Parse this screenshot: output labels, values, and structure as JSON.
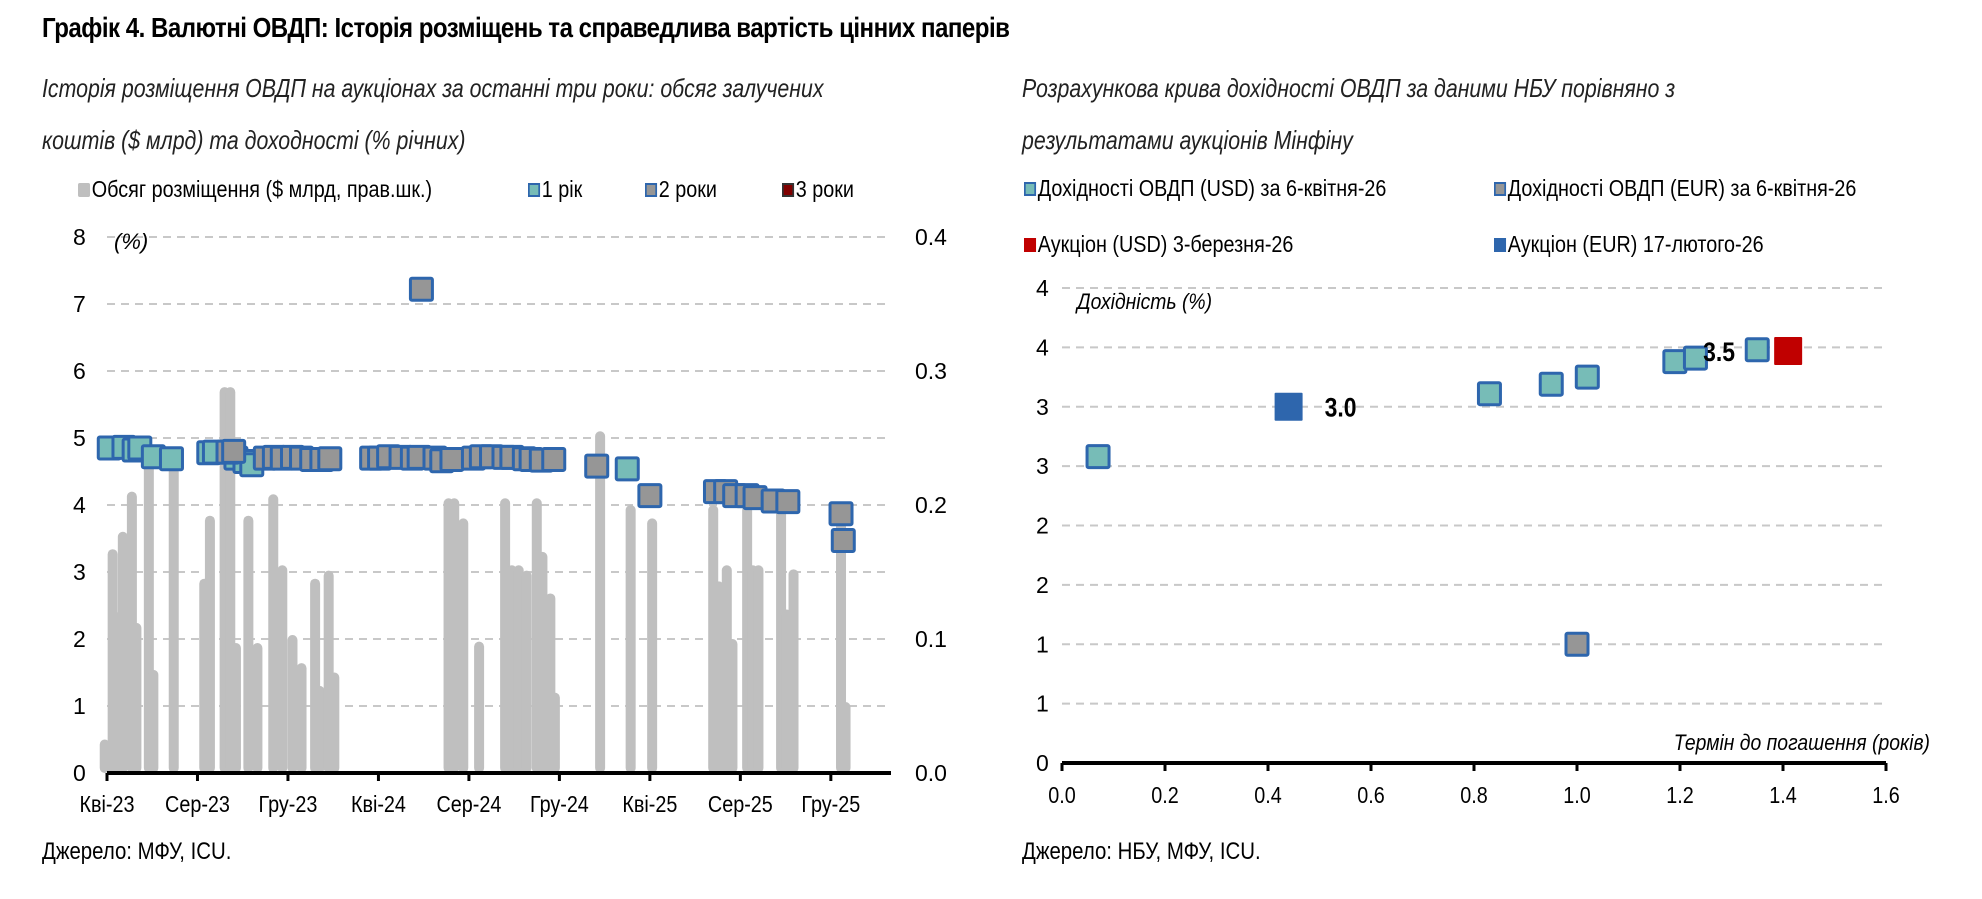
{
  "title": "Графік 4. Валютні ОВДП: Історія розміщень та справедлива вартість цінних паперів",
  "colors": {
    "bar": "#bfbfbf",
    "y1_fill": "#77bcb7",
    "y2_fill": "#969696",
    "y3_fill": "#7f0000",
    "marker_border": "#2e66ad",
    "auction_usd": "#c00000",
    "auction_eur": "#2e66ad",
    "grid": "#c8c8c8"
  },
  "chart_data": [
    {
      "type": "bar",
      "subtitle_line1": "Історія розміщення ОВДП на аукціонах за останні три роки: обсяг залучених",
      "subtitle_line2": "коштів ($ млрд) та доходності (% річних)",
      "legend": [
        {
          "label": "Обсяг розміщення ($ млрд, прав.шк.)",
          "kind": "bar"
        },
        {
          "label": "1 рік",
          "kind": "y1"
        },
        {
          "label": "2 роки",
          "kind": "y2"
        },
        {
          "label": "3 роки",
          "kind": "y3"
        }
      ],
      "ylabel": "(%)",
      "ylim": [
        0,
        8
      ],
      "yticks": [
        "0",
        "1",
        "2",
        "3",
        "4",
        "5",
        "6",
        "7",
        "8"
      ],
      "y2lim": [
        0,
        0.4
      ],
      "y2ticks": [
        "0.0",
        "0.1",
        "0.2",
        "0.3",
        "0.4"
      ],
      "xticks": [
        "Кві-23",
        "Сер-23",
        "Гру-23",
        "Кві-24",
        "Сер-24",
        "Гру-24",
        "Кві-25",
        "Сер-25",
        "Гру-25"
      ],
      "x_unit": "months since Кві-23",
      "bars": [
        {
          "x": -0.1,
          "v": 0.025
        },
        {
          "x": 0.25,
          "v": 0.167
        },
        {
          "x": 0.45,
          "v": 0.12
        },
        {
          "x": 0.7,
          "v": 0.18
        },
        {
          "x": 1.1,
          "v": 0.21
        },
        {
          "x": 1.3,
          "v": 0.112
        },
        {
          "x": 1.85,
          "v": 0.24
        },
        {
          "x": 2.05,
          "v": 0.077
        },
        {
          "x": 2.95,
          "v": 0.24
        },
        {
          "x": 4.3,
          "v": 0.145
        },
        {
          "x": 4.55,
          "v": 0.192
        },
        {
          "x": 5.2,
          "v": 0.288
        },
        {
          "x": 5.45,
          "v": 0.288
        },
        {
          "x": 5.7,
          "v": 0.097
        },
        {
          "x": 6.25,
          "v": 0.192
        },
        {
          "x": 6.65,
          "v": 0.097
        },
        {
          "x": 7.35,
          "v": 0.208
        },
        {
          "x": 7.75,
          "v": 0.155
        },
        {
          "x": 8.2,
          "v": 0.103
        },
        {
          "x": 8.6,
          "v": 0.082
        },
        {
          "x": 9.2,
          "v": 0.145
        },
        {
          "x": 9.4,
          "v": 0.065
        },
        {
          "x": 9.8,
          "v": 0.151
        },
        {
          "x": 10.05,
          "v": 0.075
        },
        {
          "x": 15.1,
          "v": 0.205
        },
        {
          "x": 15.35,
          "v": 0.205
        },
        {
          "x": 15.75,
          "v": 0.19
        },
        {
          "x": 16.45,
          "v": 0.098
        },
        {
          "x": 17.6,
          "v": 0.205
        },
        {
          "x": 17.9,
          "v": 0.155
        },
        {
          "x": 18.2,
          "v": 0.155
        },
        {
          "x": 18.55,
          "v": 0.151
        },
        {
          "x": 19.0,
          "v": 0.205
        },
        {
          "x": 19.25,
          "v": 0.165
        },
        {
          "x": 19.6,
          "v": 0.134
        },
        {
          "x": 19.8,
          "v": 0.06
        },
        {
          "x": 21.8,
          "v": 0.255
        },
        {
          "x": 23.15,
          "v": 0.2
        },
        {
          "x": 24.1,
          "v": 0.19
        },
        {
          "x": 26.8,
          "v": 0.2
        },
        {
          "x": 27.05,
          "v": 0.143
        },
        {
          "x": 27.4,
          "v": 0.155
        },
        {
          "x": 27.65,
          "v": 0.1
        },
        {
          "x": 28.3,
          "v": 0.2
        },
        {
          "x": 28.55,
          "v": 0.155
        },
        {
          "x": 28.8,
          "v": 0.155
        },
        {
          "x": 29.8,
          "v": 0.2
        },
        {
          "x": 30.05,
          "v": 0.122
        },
        {
          "x": 30.35,
          "v": 0.152
        },
        {
          "x": 32.45,
          "v": 0.2
        },
        {
          "x": 32.65,
          "v": 0.053
        }
      ],
      "series": [
        {
          "name": "1 рік",
          "kind": "y1",
          "points": [
            {
              "x": 0.1,
              "y": 4.85
            },
            {
              "x": 0.75,
              "y": 4.86
            },
            {
              "x": 1.2,
              "y": 4.82
            },
            {
              "x": 1.45,
              "y": 4.85
            },
            {
              "x": 2.05,
              "y": 4.72
            },
            {
              "x": 2.85,
              "y": 4.69
            },
            {
              "x": 4.5,
              "y": 4.78
            },
            {
              "x": 4.75,
              "y": 4.79
            },
            {
              "x": 5.7,
              "y": 4.7
            },
            {
              "x": 6.1,
              "y": 4.65
            },
            {
              "x": 6.4,
              "y": 4.6
            }
          ]
        },
        {
          "name": "2 роки",
          "kind": "y2",
          "points": [
            {
              "x": 5.35,
              "y": 4.79
            },
            {
              "x": 5.6,
              "y": 4.8
            },
            {
              "x": 7.0,
              "y": 4.7
            },
            {
              "x": 7.4,
              "y": 4.71
            },
            {
              "x": 7.75,
              "y": 4.7
            },
            {
              "x": 8.2,
              "y": 4.71
            },
            {
              "x": 8.6,
              "y": 4.7
            },
            {
              "x": 9.05,
              "y": 4.68
            },
            {
              "x": 9.5,
              "y": 4.68
            },
            {
              "x": 9.85,
              "y": 4.69
            },
            {
              "x": 13.9,
              "y": 7.22
            },
            {
              "x": 11.7,
              "y": 4.7
            },
            {
              "x": 12.05,
              "y": 4.7
            },
            {
              "x": 12.45,
              "y": 4.72
            },
            {
              "x": 13.0,
              "y": 4.71
            },
            {
              "x": 13.5,
              "y": 4.7
            },
            {
              "x": 13.8,
              "y": 4.71
            },
            {
              "x": 14.5,
              "y": 4.7
            },
            {
              "x": 14.8,
              "y": 4.66
            },
            {
              "x": 15.25,
              "y": 4.68
            },
            {
              "x": 16.2,
              "y": 4.7
            },
            {
              "x": 16.55,
              "y": 4.72
            },
            {
              "x": 17.0,
              "y": 4.72
            },
            {
              "x": 17.55,
              "y": 4.71
            },
            {
              "x": 17.9,
              "y": 4.71
            },
            {
              "x": 18.45,
              "y": 4.69
            },
            {
              "x": 18.75,
              "y": 4.68
            },
            {
              "x": 19.2,
              "y": 4.67
            },
            {
              "x": 19.75,
              "y": 4.68
            },
            {
              "x": 21.65,
              "y": 4.58
            },
            {
              "x": 24.0,
              "y": 4.14
            },
            {
              "x": 26.9,
              "y": 4.2
            },
            {
              "x": 27.35,
              "y": 4.2
            },
            {
              "x": 27.75,
              "y": 4.14
            },
            {
              "x": 28.3,
              "y": 4.14
            },
            {
              "x": 28.65,
              "y": 4.11
            },
            {
              "x": 29.45,
              "y": 4.06
            },
            {
              "x": 30.1,
              "y": 4.05
            },
            {
              "x": 32.45,
              "y": 3.87
            },
            {
              "x": 32.55,
              "y": 3.47
            }
          ]
        },
        {
          "name": "1 рік (Кві-25)",
          "kind": "y1",
          "points": [
            {
              "x": 23.0,
              "y": 4.54
            }
          ]
        },
        {
          "name": "3 роки",
          "kind": "y3",
          "points": []
        }
      ],
      "source": "Джерело: МФУ, ICU."
    },
    {
      "type": "scatter",
      "subtitle_line1": "Розрахункова крива дохідності ОВДП за даними НБУ порівняно з",
      "subtitle_line2": "результатами аукціонів Мінфіну",
      "legend": [
        {
          "label": "Дохідності ОВДП (USD) за 6-квітня-26",
          "kind": "usd_nbu"
        },
        {
          "label": "Дохідності ОВДП (EUR) за 6-квітня-26",
          "kind": "eur_nbu"
        },
        {
          "label": "Аукціон (USD) 3-березня-26",
          "kind": "usd_auction"
        },
        {
          "label": "Аукціон (EUR) 17-лютого-26",
          "kind": "eur_auction"
        }
      ],
      "ylabel": "Дохідність (%)",
      "xlabel": "Термін до погашення (років)",
      "xlim": [
        0,
        1.6
      ],
      "ylim": [
        0,
        4
      ],
      "xticks": [
        "0.0",
        "0.2",
        "0.4",
        "0.6",
        "0.8",
        "1.0",
        "1.2",
        "1.4",
        "1.6"
      ],
      "yticks": [
        {
          "v": 0,
          "label": "0"
        },
        {
          "v": 0.5,
          "label": "1"
        },
        {
          "v": 1,
          "label": "1"
        },
        {
          "v": 1.5,
          "label": "2"
        },
        {
          "v": 2,
          "label": "2"
        },
        {
          "v": 2.5,
          "label": "3"
        },
        {
          "v": 3,
          "label": "3"
        },
        {
          "v": 3.5,
          "label": "4"
        },
        {
          "v": 4,
          "label": "4"
        }
      ],
      "series": [
        {
          "name": "Дохідності ОВДП (USD) за 6-квітня-26",
          "kind": "usd_nbu",
          "points": [
            {
              "x": 0.07,
              "y": 2.58
            },
            {
              "x": 0.83,
              "y": 3.11
            },
            {
              "x": 0.95,
              "y": 3.19
            },
            {
              "x": 1.02,
              "y": 3.25
            },
            {
              "x": 1.19,
              "y": 3.38
            },
            {
              "x": 1.23,
              "y": 3.41
            },
            {
              "x": 1.35,
              "y": 3.48
            }
          ]
        },
        {
          "name": "Дохідності ОВДП (EUR) за 6-квітня-26",
          "kind": "eur_nbu",
          "points": [
            {
              "x": 1.0,
              "y": 1.0
            }
          ]
        },
        {
          "name": "Аукціон (USD) 3-березня-26",
          "kind": "usd_auction",
          "points": [
            {
              "x": 1.41,
              "y": 3.47,
              "label": "3.5"
            }
          ]
        },
        {
          "name": "Аукціон (EUR) 17-лютого-26",
          "kind": "eur_auction",
          "points": [
            {
              "x": 0.44,
              "y": 3.0,
              "label": "3.0"
            }
          ]
        }
      ],
      "source": "Джерело: НБУ, МФУ, ICU."
    }
  ]
}
